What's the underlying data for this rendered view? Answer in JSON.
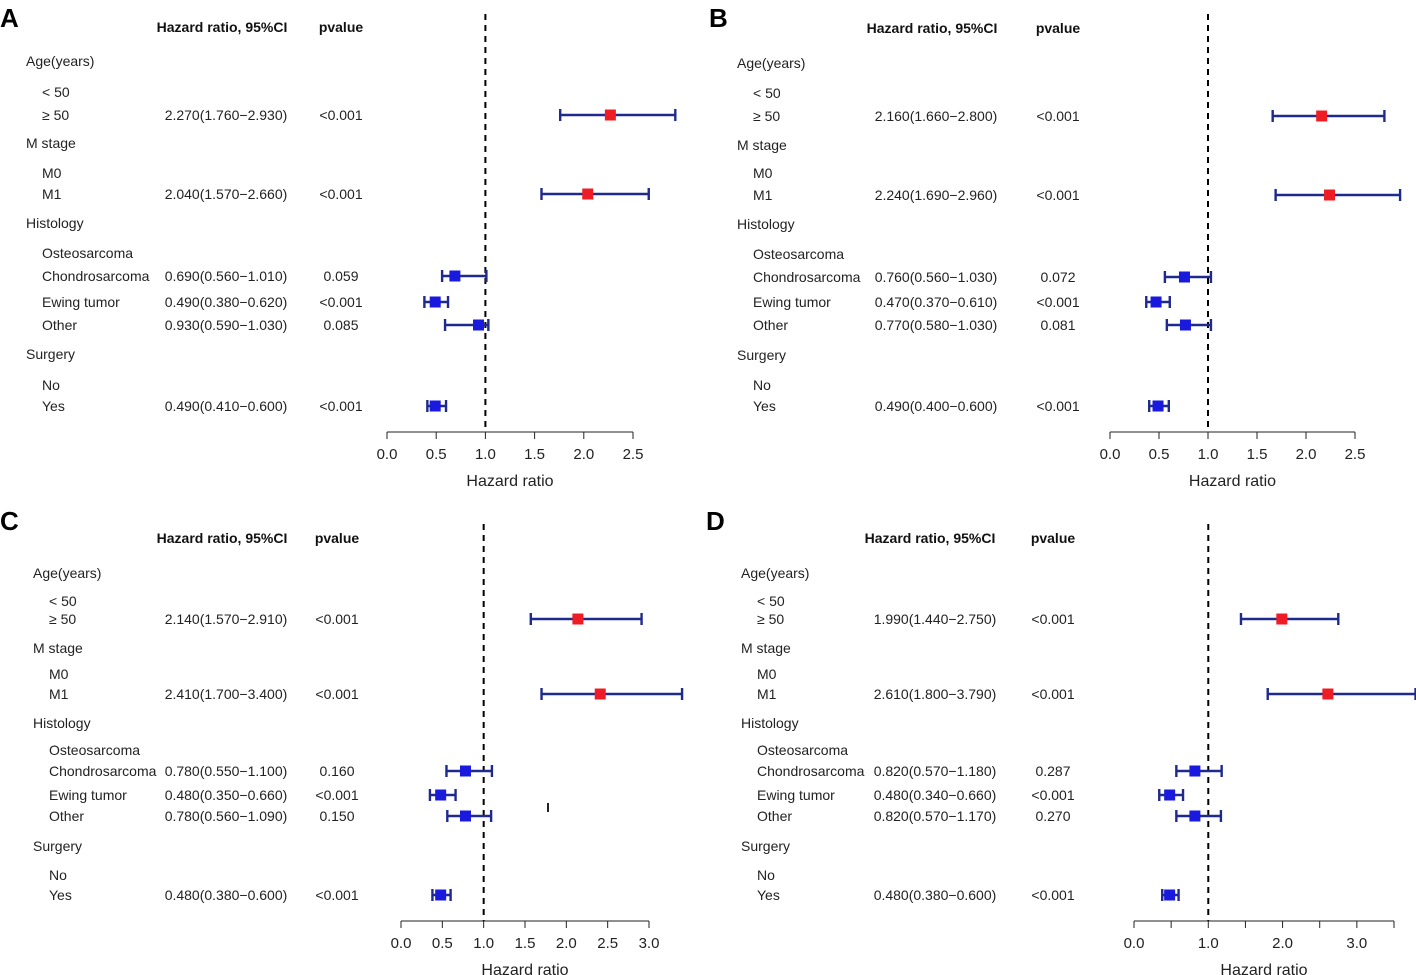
{
  "header_labels": {
    "hr": "Hazard ratio, 95%CI",
    "pvalue": "pvalue",
    "axis_title": "Hazard ratio"
  },
  "colors": {
    "hazard": "#ee1c24",
    "protective": "#1a1adf",
    "ci_line": "#1f2a8c"
  },
  "chart_data": [
    {
      "panel": "A",
      "type": "forest",
      "xlabel": "Hazard ratio",
      "reference": 1.0,
      "xlim": [
        0,
        2.5
      ],
      "ticks": [
        "0.0",
        "0.5",
        "1.0",
        "1.5",
        "2.0",
        "2.5"
      ],
      "rows": [
        {
          "label": "Age(years)",
          "indent": false
        },
        {
          "label": "< 50",
          "indent": true
        },
        {
          "label": "≥  50",
          "indent": true,
          "ci_text": "2.270(1.760−2.930)",
          "p": "<0.001",
          "hr": 2.27,
          "lo": 1.76,
          "hi": 2.93
        },
        {
          "label": "M stage",
          "indent": false
        },
        {
          "label": "M0",
          "indent": true
        },
        {
          "label": "M1",
          "indent": true,
          "ci_text": "2.040(1.570−2.660)",
          "p": "<0.001",
          "hr": 2.04,
          "lo": 1.57,
          "hi": 2.66
        },
        {
          "label": "Histology",
          "indent": false
        },
        {
          "label": "Osteosarcoma",
          "indent": true
        },
        {
          "label": "Chondrosarcoma",
          "indent": true,
          "ci_text": "0.690(0.560−1.010)",
          "p": "0.059",
          "hr": 0.69,
          "lo": 0.56,
          "hi": 1.01
        },
        {
          "label": "Ewing tumor",
          "indent": true,
          "ci_text": "0.490(0.380−0.620)",
          "p": "<0.001",
          "hr": 0.49,
          "lo": 0.38,
          "hi": 0.62
        },
        {
          "label": "Other",
          "indent": true,
          "ci_text": "0.930(0.590−1.030)",
          "p": "0.085",
          "hr": 0.93,
          "lo": 0.59,
          "hi": 1.03
        },
        {
          "label": "Surgery",
          "indent": false
        },
        {
          "label": "No",
          "indent": true
        },
        {
          "label": "Yes",
          "indent": true,
          "ci_text": "0.490(0.410−0.600)",
          "p": "<0.001",
          "hr": 0.49,
          "lo": 0.41,
          "hi": 0.6
        }
      ]
    },
    {
      "panel": "B",
      "type": "forest",
      "xlabel": "Hazard ratio",
      "reference": 1.0,
      "xlim": [
        0,
        2.5
      ],
      "ticks": [
        "0.0",
        "0.5",
        "1.0",
        "1.5",
        "2.0",
        "2.5"
      ],
      "rows": [
        {
          "label": "Age(years)",
          "indent": false
        },
        {
          "label": "< 50",
          "indent": true
        },
        {
          "label": "≥  50",
          "indent": true,
          "ci_text": "2.160(1.660−2.800)",
          "p": "<0.001",
          "hr": 2.16,
          "lo": 1.66,
          "hi": 2.8
        },
        {
          "label": "M stage",
          "indent": false
        },
        {
          "label": "M0",
          "indent": true
        },
        {
          "label": "M1",
          "indent": true,
          "ci_text": "2.240(1.690−2.960)",
          "p": "<0.001",
          "hr": 2.24,
          "lo": 1.69,
          "hi": 2.96
        },
        {
          "label": "Histology",
          "indent": false
        },
        {
          "label": "Osteosarcoma",
          "indent": true
        },
        {
          "label": "Chondrosarcoma",
          "indent": true,
          "ci_text": "0.760(0.560−1.030)",
          "p": "0.072",
          "hr": 0.76,
          "lo": 0.56,
          "hi": 1.03
        },
        {
          "label": "Ewing tumor",
          "indent": true,
          "ci_text": "0.470(0.370−0.610)",
          "p": "<0.001",
          "hr": 0.47,
          "lo": 0.37,
          "hi": 0.61
        },
        {
          "label": "Other",
          "indent": true,
          "ci_text": "0.770(0.580−1.030)",
          "p": "0.081",
          "hr": 0.77,
          "lo": 0.58,
          "hi": 1.03
        },
        {
          "label": "Surgery",
          "indent": false
        },
        {
          "label": "No",
          "indent": true
        },
        {
          "label": "Yes",
          "indent": true,
          "ci_text": "0.490(0.400−0.600)",
          "p": "<0.001",
          "hr": 0.49,
          "lo": 0.4,
          "hi": 0.6
        }
      ]
    },
    {
      "panel": "C",
      "type": "forest",
      "xlabel": "Hazard ratio",
      "reference": 1.0,
      "xlim": [
        0,
        3.0
      ],
      "ticks": [
        "0.0",
        "0.5",
        "1.0",
        "1.5",
        "2.0",
        "2.5",
        "3.0"
      ],
      "rows": [
        {
          "label": "Age(years)",
          "indent": false
        },
        {
          "label": "< 50",
          "indent": true
        },
        {
          "label": "≥  50",
          "indent": true,
          "ci_text": "2.140(1.570−2.910)",
          "p": "<0.001",
          "hr": 2.14,
          "lo": 1.57,
          "hi": 2.91
        },
        {
          "label": "M stage",
          "indent": false
        },
        {
          "label": "M0",
          "indent": true
        },
        {
          "label": "M1",
          "indent": true,
          "ci_text": "2.410(1.700−3.400)",
          "p": "<0.001",
          "hr": 2.41,
          "lo": 1.7,
          "hi": 3.4
        },
        {
          "label": "Histology",
          "indent": false
        },
        {
          "label": "Osteosarcoma",
          "indent": true
        },
        {
          "label": "Chondrosarcoma",
          "indent": true,
          "ci_text": "0.780(0.550−1.100)",
          "p": "0.160",
          "hr": 0.78,
          "lo": 0.55,
          "hi": 1.1
        },
        {
          "label": "Ewing tumor",
          "indent": true,
          "ci_text": "0.480(0.350−0.660)",
          "p": "<0.001",
          "hr": 0.48,
          "lo": 0.35,
          "hi": 0.66
        },
        {
          "label": "Other",
          "indent": true,
          "ci_text": "0.780(0.560−1.090)",
          "p": "0.150",
          "hr": 0.78,
          "lo": 0.56,
          "hi": 1.09
        },
        {
          "label": "Surgery",
          "indent": false
        },
        {
          "label": "No",
          "indent": true
        },
        {
          "label": "Yes",
          "indent": true,
          "ci_text": "0.480(0.380−0.600)",
          "p": "<0.001",
          "hr": 0.48,
          "lo": 0.38,
          "hi": 0.6
        }
      ]
    },
    {
      "panel": "D",
      "type": "forest",
      "xlabel": "Hazard ratio",
      "reference": 1.0,
      "xlim": [
        0,
        3.5
      ],
      "ticks": [
        "0.0",
        "1.0",
        "2.0",
        "3.0"
      ],
      "rows": [
        {
          "label": "Age(years)",
          "indent": false
        },
        {
          "label": "< 50",
          "indent": true
        },
        {
          "label": "≥  50",
          "indent": true,
          "ci_text": "1.990(1.440−2.750)",
          "p": "<0.001",
          "hr": 1.99,
          "lo": 1.44,
          "hi": 2.75
        },
        {
          "label": "M stage",
          "indent": false
        },
        {
          "label": "M0",
          "indent": true
        },
        {
          "label": "M1",
          "indent": true,
          "ci_text": "2.610(1.800−3.790)",
          "p": "<0.001",
          "hr": 2.61,
          "lo": 1.8,
          "hi": 3.79
        },
        {
          "label": "Histology",
          "indent": false
        },
        {
          "label": "Osteosarcoma",
          "indent": true
        },
        {
          "label": "Chondrosarcoma",
          "indent": true,
          "ci_text": "0.820(0.570−1.180)",
          "p": "0.287",
          "hr": 0.82,
          "lo": 0.57,
          "hi": 1.18
        },
        {
          "label": "Ewing tumor",
          "indent": true,
          "ci_text": "0.480(0.340−0.660)",
          "p": "<0.001",
          "hr": 0.48,
          "lo": 0.34,
          "hi": 0.66
        },
        {
          "label": "Other",
          "indent": true,
          "ci_text": "0.820(0.570−1.170)",
          "p": "0.270",
          "hr": 0.82,
          "lo": 0.57,
          "hi": 1.17
        },
        {
          "label": "Surgery",
          "indent": false
        },
        {
          "label": "No",
          "indent": true
        },
        {
          "label": "Yes",
          "indent": true,
          "ci_text": "0.480(0.380−0.600)",
          "p": "<0.001",
          "hr": 0.48,
          "lo": 0.38,
          "hi": 0.6
        }
      ]
    }
  ]
}
